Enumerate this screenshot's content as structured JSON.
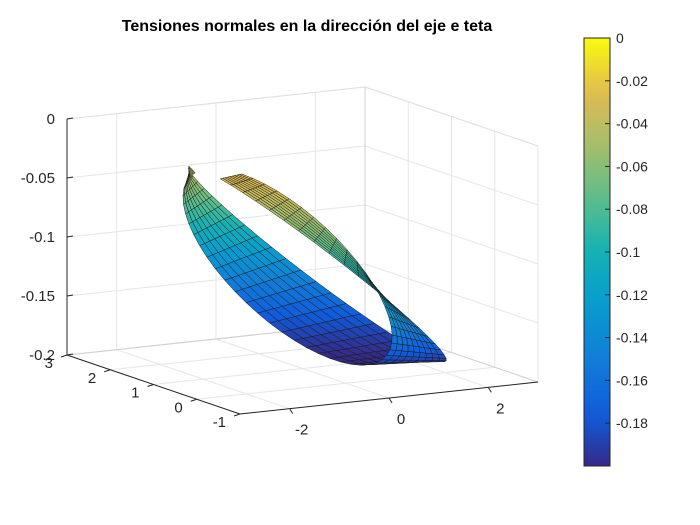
{
  "chart_data": {
    "type": "surface3d",
    "title": "Tensiones normales en la dirección del eje e teta",
    "xlabel": "",
    "ylabel": "",
    "zlabel": "",
    "xlim": [
      -3,
      3
    ],
    "ylim": [
      -1,
      3
    ],
    "zlim": [
      -0.2,
      0
    ],
    "x_ticks": [
      "-2",
      "0",
      "2"
    ],
    "y_ticks": [
      "-1",
      "0",
      "1",
      "2",
      "3"
    ],
    "z_ticks": [
      "-0.2",
      "-0.15",
      "-0.1",
      "-0.05",
      "0"
    ],
    "grid": true,
    "colormap": "parula",
    "colorbar": {
      "range": [
        -0.2,
        0
      ],
      "tick_labels": [
        "0",
        "-0.02",
        "-0.04",
        "-0.06",
        "-0.08",
        "-0.1",
        "-0.12",
        "-0.14",
        "-0.16",
        "-0.18"
      ]
    },
    "surface": {
      "description_free": true,
      "theta_range_deg": [
        0,
        360
      ],
      "radius_range": [
        1,
        3
      ],
      "z_min": -0.2,
      "z_max": -0.025,
      "x_wrap": 2.2,
      "y_wrap": 2.2
    }
  }
}
